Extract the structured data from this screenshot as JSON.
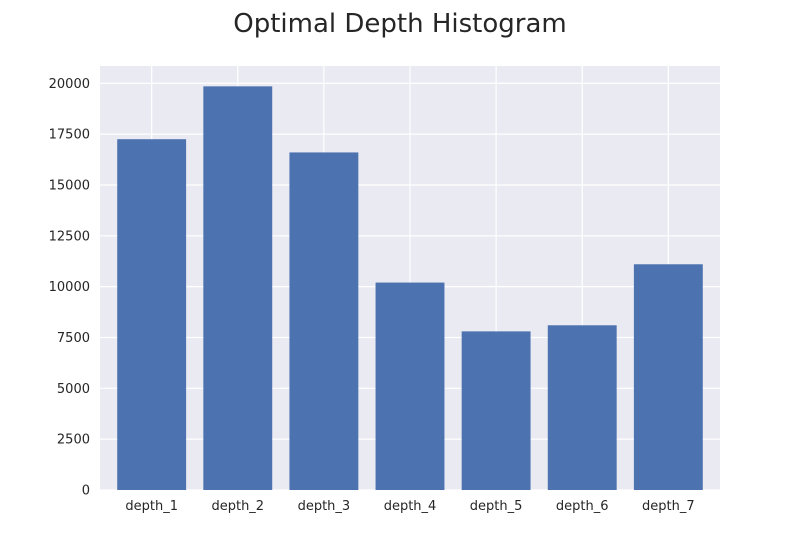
{
  "colors": {
    "plot_background": "#eaeaf2",
    "grid": "#ffffff",
    "bar": "#4c72b0",
    "text": "#262626"
  },
  "chart_data": {
    "type": "bar",
    "title": "Optimal Depth Histogram",
    "xlabel": "",
    "ylabel": "",
    "categories": [
      "depth_1",
      "depth_2",
      "depth_3",
      "depth_4",
      "depth_5",
      "depth_6",
      "depth_7"
    ],
    "values": [
      17250,
      19850,
      16600,
      10200,
      7800,
      8100,
      11100
    ],
    "ylim": [
      0,
      20850
    ],
    "yticks": [
      0,
      2500,
      5000,
      7500,
      10000,
      12500,
      15000,
      17500,
      20000
    ],
    "ytick_labels": [
      "0",
      "2500",
      "5000",
      "7500",
      "10000",
      "12500",
      "15000",
      "17500",
      "20000"
    ],
    "grid": true,
    "legend": "none"
  }
}
